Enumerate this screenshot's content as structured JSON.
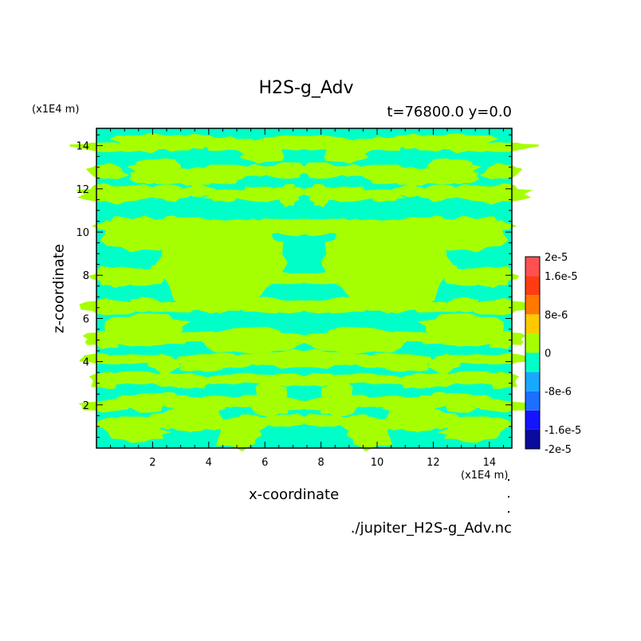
{
  "chart_data": {
    "type": "heatmap",
    "title": "H2S-g_Adv",
    "subtitle": "t=76800.0 y=0.0",
    "xlabel": "x-coordinate",
    "ylabel": "z-coordinate",
    "x_unit": "(x1E4 m)",
    "y_unit": "(x1E4 m)",
    "xlim": [
      0,
      14.8
    ],
    "ylim": [
      0,
      14.8
    ],
    "x_ticks": [
      "2",
      "4",
      "6",
      "8",
      "10",
      "12",
      "14"
    ],
    "y_ticks": [
      "2",
      "4",
      "6",
      "8",
      "10",
      "12",
      "14"
    ],
    "x_tick_values": [
      2,
      4,
      6,
      8,
      10,
      12,
      14
    ],
    "y_tick_values": [
      2,
      4,
      6,
      8,
      10,
      12,
      14
    ],
    "footer": "./jupiter_H2S-g_Adv.nc",
    "colorbar": {
      "levels": [
        -2e-05,
        -1.6e-05,
        -1.2e-05,
        -8e-06,
        -4e-06,
        0,
        4e-06,
        8e-06,
        1.2e-05,
        1.6e-05,
        2e-05
      ],
      "colors": [
        "#0a0aa0",
        "#1414ff",
        "#1c70ff",
        "#18a8ff",
        "#00ffc8",
        "#a6ff00",
        "#ffc800",
        "#ff7800",
        "#ff3c14",
        "#ff5050"
      ],
      "labels": [
        "2e-5",
        "1.6e-5",
        "8e-6",
        "0",
        "-8e-6",
        "-1.6e-5",
        "-2e-5"
      ],
      "label_values": [
        2e-05,
        1.6e-05,
        8e-06,
        0,
        -8e-06,
        -1.6e-05,
        -2e-05
      ]
    },
    "field_colors": {
      "negative_small": "#00ffc8",
      "positive_small": "#a6ff00"
    }
  }
}
